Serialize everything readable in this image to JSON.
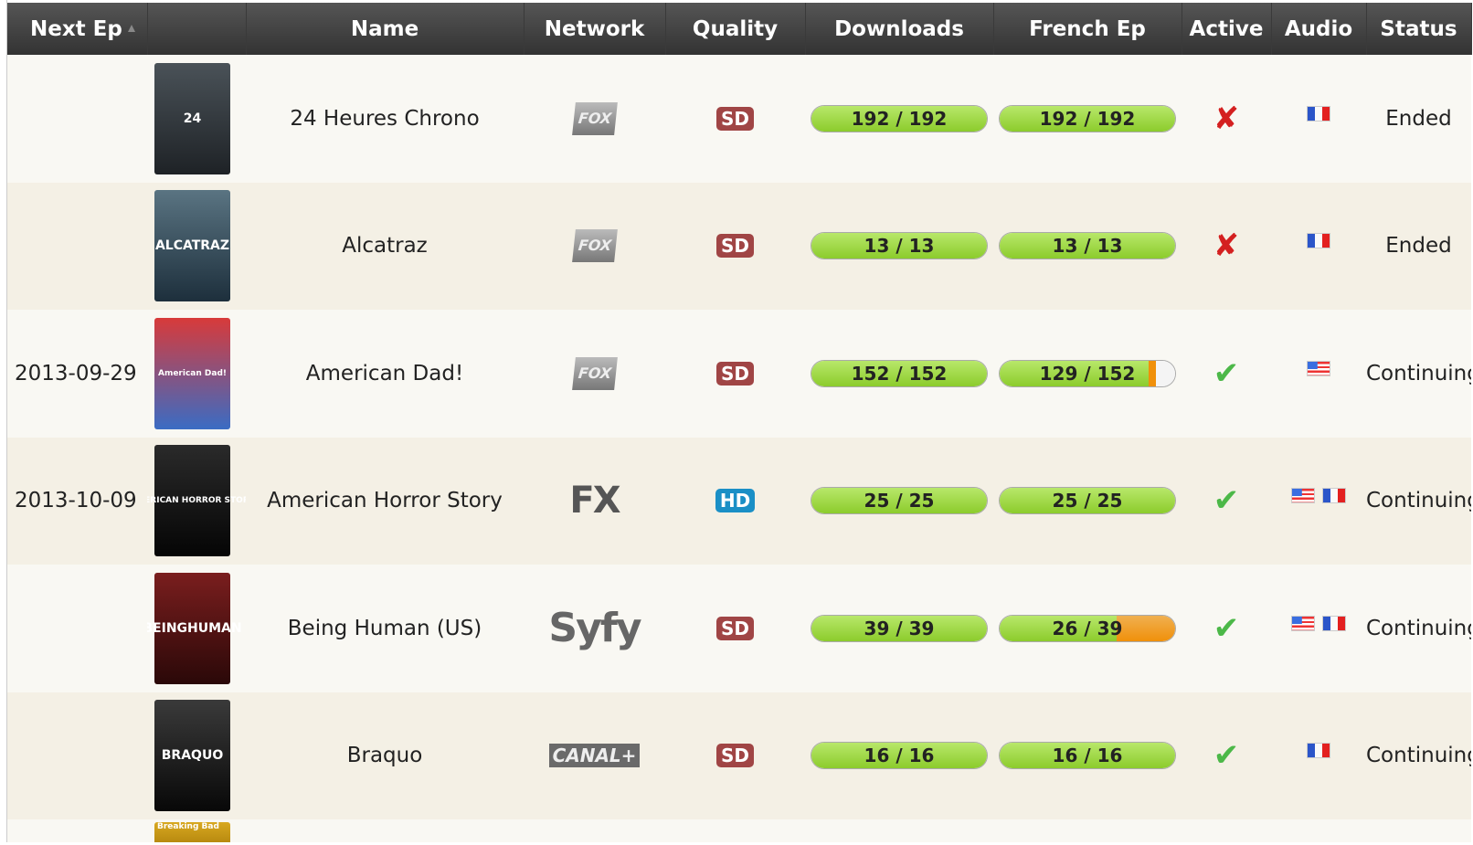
{
  "columns": {
    "next_ep": "Next Ep",
    "name": "Name",
    "network": "Network",
    "quality": "Quality",
    "downloads": "Downloads",
    "french_ep": "French Ep",
    "active": "Active",
    "audio": "Audio",
    "status": "Status"
  },
  "colors": {
    "sd": "#a04545",
    "hd": "#1a8fc6",
    "bar_green": "#8ccc2c",
    "bar_orange": "#f39a1a",
    "cross": "#d42020",
    "check": "#4cb848"
  },
  "shows": [
    {
      "next_ep": "",
      "name": "24 Heures Chrono",
      "poster_text": "24",
      "poster_colors": [
        "#4a5258",
        "#1e2226"
      ],
      "network": "FOX",
      "network_style": "fox",
      "quality": "SD",
      "downloads": {
        "label": "192 / 192",
        "have": 192,
        "total": 192
      },
      "french": {
        "label": "192 / 192",
        "have": 192,
        "total": 192,
        "rest": "none"
      },
      "active": false,
      "active_icon": "✘",
      "audio": [
        "fr"
      ],
      "status": "Ended"
    },
    {
      "next_ep": "",
      "name": "Alcatraz",
      "poster_text": "ALCATRAZ",
      "poster_colors": [
        "#5a7482",
        "#1d2f3c"
      ],
      "network": "FOX",
      "network_style": "fox",
      "quality": "SD",
      "downloads": {
        "label": "13 / 13",
        "have": 13,
        "total": 13
      },
      "french": {
        "label": "13 / 13",
        "have": 13,
        "total": 13,
        "rest": "none"
      },
      "active": false,
      "active_icon": "✘",
      "audio": [
        "fr"
      ],
      "status": "Ended"
    },
    {
      "next_ep": "2013-09-29",
      "name": "American Dad!",
      "poster_text": "American Dad!",
      "poster_colors": [
        "#d83a3a",
        "#3a6cc4"
      ],
      "network": "FOX",
      "network_style": "fox",
      "quality": "SD",
      "downloads": {
        "label": "152 / 152",
        "have": 152,
        "total": 152
      },
      "french": {
        "label": "129 / 152",
        "have": 129,
        "total": 152,
        "rest": "sliver"
      },
      "active": true,
      "active_icon": "✔",
      "audio": [
        "us"
      ],
      "status": "Continuing"
    },
    {
      "next_ep": "2013-10-09",
      "name": "American Horror Story",
      "poster_text": "AMERICAN HORROR STORY",
      "poster_colors": [
        "#2a2a2a",
        "#050505"
      ],
      "network": "FX",
      "network_style": "fx",
      "quality": "HD",
      "downloads": {
        "label": "25 / 25",
        "have": 25,
        "total": 25
      },
      "french": {
        "label": "25 / 25",
        "have": 25,
        "total": 25,
        "rest": "none"
      },
      "active": true,
      "active_icon": "✔",
      "audio": [
        "us",
        "fr"
      ],
      "status": "Continuing"
    },
    {
      "next_ep": "",
      "name": "Being Human (US)",
      "poster_text": "BEINGHUMAN",
      "poster_colors": [
        "#7a1e1e",
        "#2a0808"
      ],
      "network": "Syfy",
      "network_style": "syfy",
      "quality": "SD",
      "downloads": {
        "label": "39 / 39",
        "have": 39,
        "total": 39
      },
      "french": {
        "label": "26 / 39",
        "have": 26,
        "total": 39,
        "rest": "orange"
      },
      "active": true,
      "active_icon": "✔",
      "audio": [
        "us",
        "fr"
      ],
      "status": "Continuing"
    },
    {
      "next_ep": "",
      "name": "Braquo",
      "poster_text": "BRAQUO",
      "poster_colors": [
        "#3a3a3a",
        "#080808"
      ],
      "network": "CANAL+",
      "network_style": "canal",
      "quality": "SD",
      "downloads": {
        "label": "16 / 16",
        "have": 16,
        "total": 16
      },
      "french": {
        "label": "16 / 16",
        "have": 16,
        "total": 16,
        "rest": "none"
      },
      "active": true,
      "active_icon": "✔",
      "audio": [
        "fr"
      ],
      "status": "Continuing"
    },
    {
      "next_ep": "",
      "name": "",
      "poster_text": "Breaking Bad",
      "poster_colors": [
        "#d8a820",
        "#b88a10"
      ],
      "network": "",
      "network_style": "",
      "quality": "",
      "downloads": null,
      "french": null,
      "active": null,
      "active_icon": "",
      "audio": [],
      "status": ""
    }
  ]
}
